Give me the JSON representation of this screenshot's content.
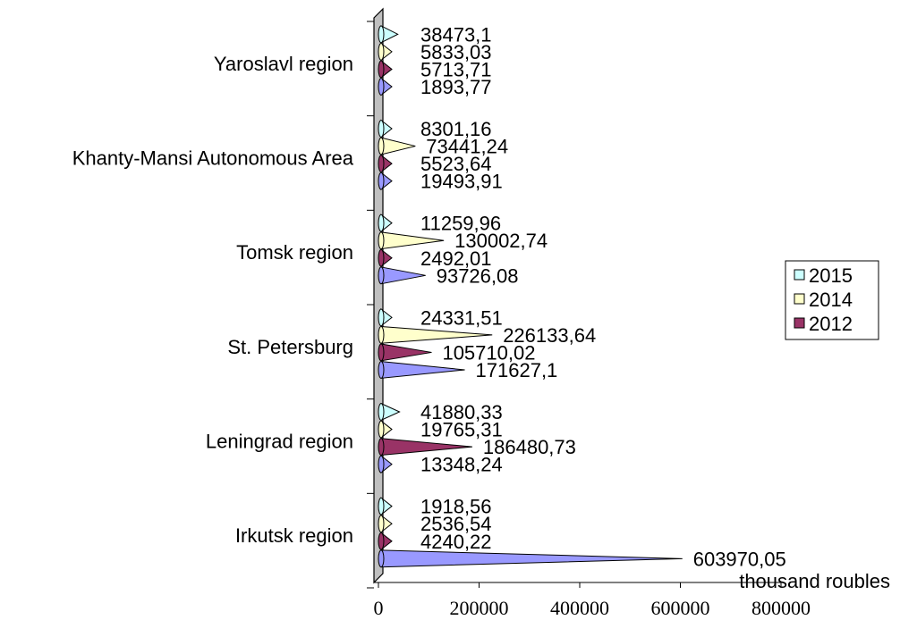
{
  "chart_data": {
    "type": "bar",
    "orientation": "horizontal",
    "style": "3d-cone",
    "categories": [
      "Irkutsk region",
      "Leningrad region",
      "St. Petersburg",
      "Tomsk region",
      "Khanty-Mansi Autonomous Area",
      "Yaroslavl region"
    ],
    "series": [
      {
        "name": "",
        "color": "#9999ff",
        "values": [
          603970.05,
          13348.24,
          171627.1,
          93726.08,
          19493.91,
          1893.77
        ],
        "labels": [
          "603970,05",
          "13348,24",
          "171627,1",
          "93726,08",
          "19493,91",
          "1893,77"
        ]
      },
      {
        "name": "2012",
        "color": "#993366",
        "values": [
          4240.22,
          186480.73,
          105710.02,
          2492.01,
          5523.64,
          5713.71
        ],
        "labels": [
          "4240,22",
          "186480,73",
          "105710,02",
          "2492,01",
          "5523,64",
          "5713,71"
        ]
      },
      {
        "name": "2014",
        "color": "#ffffcc",
        "values": [
          2536.54,
          19765.31,
          226133.64,
          130002.74,
          73441.24,
          5833.03
        ],
        "labels": [
          "2536,54",
          "19765,31",
          "226133,64",
          "130002,74",
          "73441,24",
          "5833,03"
        ]
      },
      {
        "name": "2015",
        "color": "#ccffff",
        "values": [
          1918.56,
          41880.33,
          24331.51,
          11259.96,
          8301.16,
          38473.1
        ],
        "labels": [
          "1918,56",
          "41880,33",
          "24331,51",
          "11259,96",
          "8301,16",
          "38473,1"
        ]
      }
    ],
    "xlabel": "thousand roubles",
    "xlim": [
      0,
      800000
    ],
    "xticks": [
      0,
      200000,
      400000,
      600000,
      800000
    ],
    "xtick_labels": [
      "0",
      "200000",
      "400000",
      "600000",
      "800000"
    ],
    "grid": false,
    "legend": {
      "placement": "right",
      "entries": [
        "2015",
        "2014",
        "2012"
      ]
    }
  }
}
